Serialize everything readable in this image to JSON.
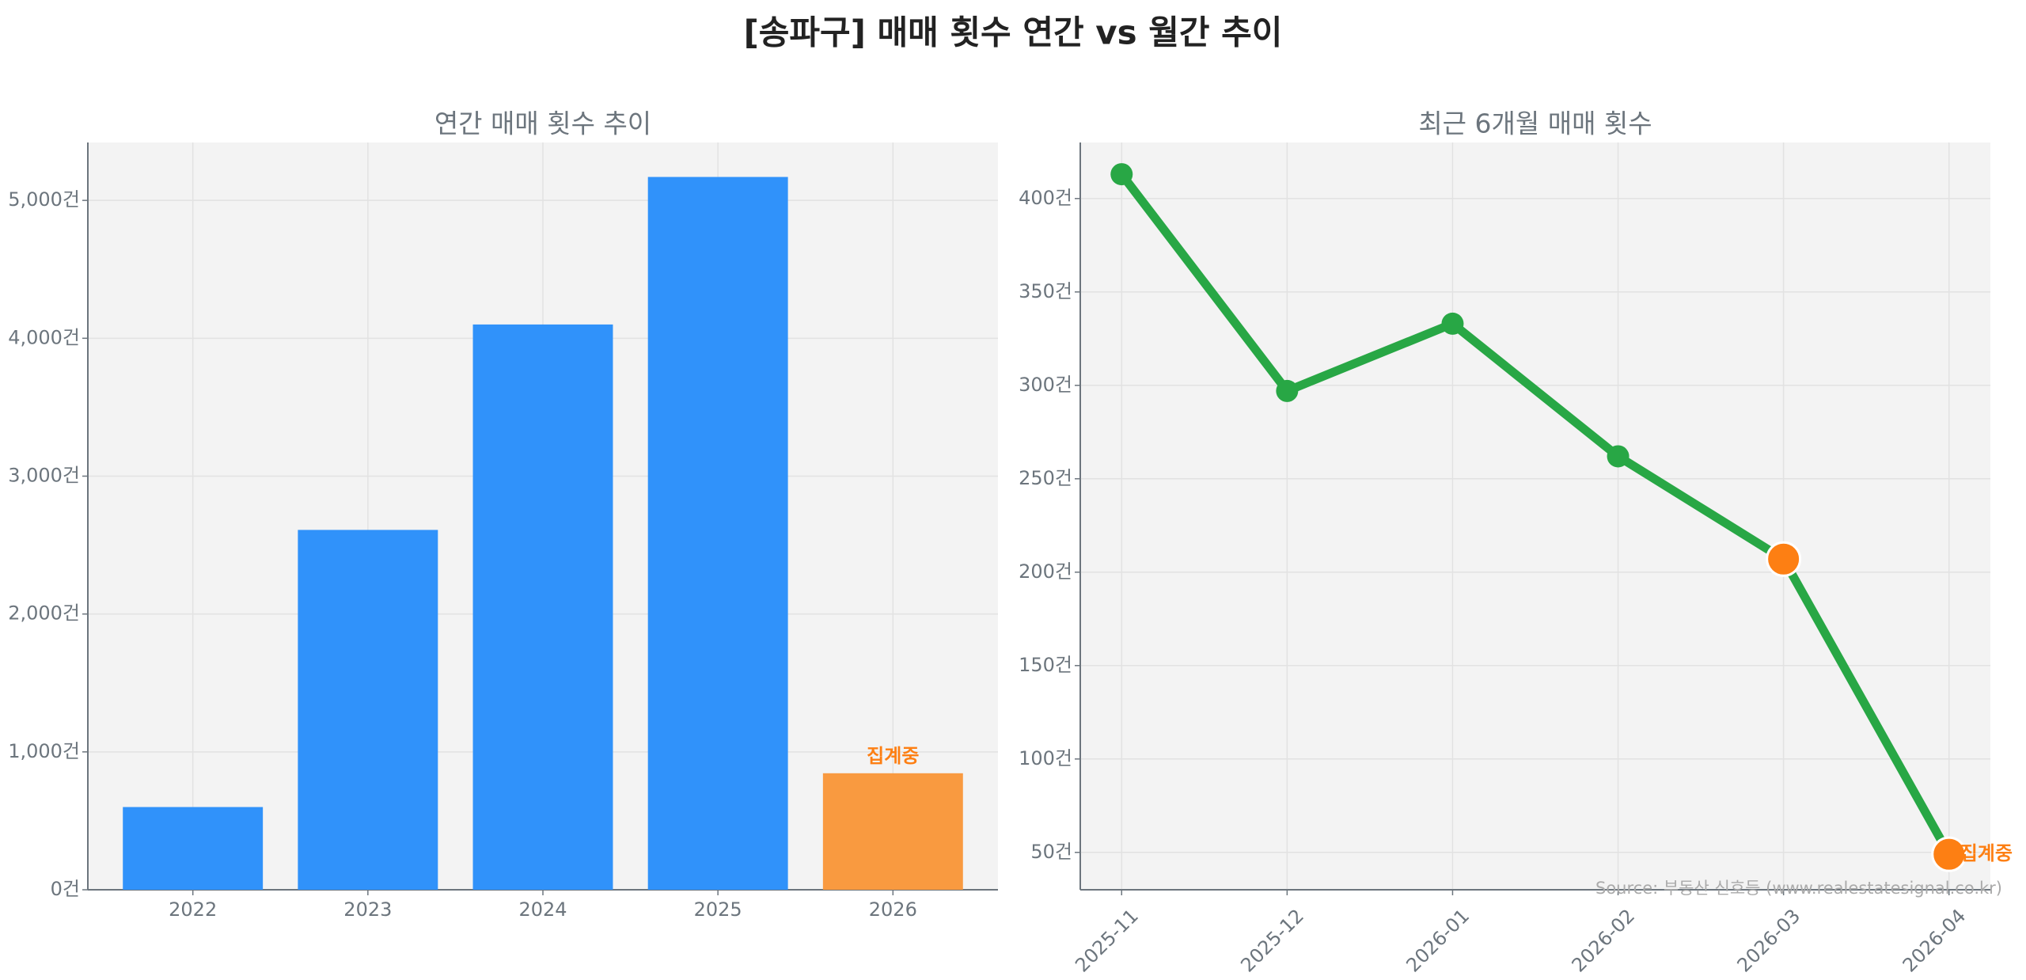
{
  "title": "[송파구] 매매 횟수 연간 vs 월간 추이",
  "source": "Source: 부동산 신호등 (www.realestatesignal.co.kr)",
  "colors": {
    "bar": "#3092fa",
    "bar_partial": "#f99a40",
    "line": "#28a745",
    "point_partial": "#fd7f13",
    "text": "#6c757d",
    "plot_bg": "#f3f3f3"
  },
  "chart_data": [
    {
      "type": "bar",
      "title": "연간 매매 횟수 추이",
      "categories": [
        "2022",
        "2023",
        "2024",
        "2025",
        "2026"
      ],
      "values": [
        600,
        2610,
        4100,
        5170,
        845
      ],
      "partial_flags": [
        false,
        false,
        false,
        false,
        true
      ],
      "annotation": "집계중",
      "ylim": [
        0,
        5420
      ],
      "yticks": [
        0,
        1000,
        2000,
        3000,
        4000,
        5000
      ],
      "ytick_labels": [
        "0건",
        "1,000건",
        "2,000건",
        "3,000건",
        "4,000건",
        "5,000건"
      ],
      "grid": true
    },
    {
      "type": "line",
      "title": "최근 6개월 매매 횟수",
      "categories": [
        "2025-11",
        "2025-12",
        "2026-01",
        "2026-02",
        "2026-03",
        "2026-04"
      ],
      "values": [
        413,
        297,
        333,
        262,
        207,
        49
      ],
      "highlight_flags": [
        false,
        false,
        false,
        false,
        true,
        true
      ],
      "annotation": "집계중",
      "ylim": [
        30,
        430
      ],
      "yticks": [
        50,
        100,
        150,
        200,
        250,
        300,
        350,
        400
      ],
      "ytick_labels": [
        "50건",
        "100건",
        "150건",
        "200건",
        "250건",
        "300건",
        "350건",
        "400건"
      ],
      "grid": true
    }
  ]
}
